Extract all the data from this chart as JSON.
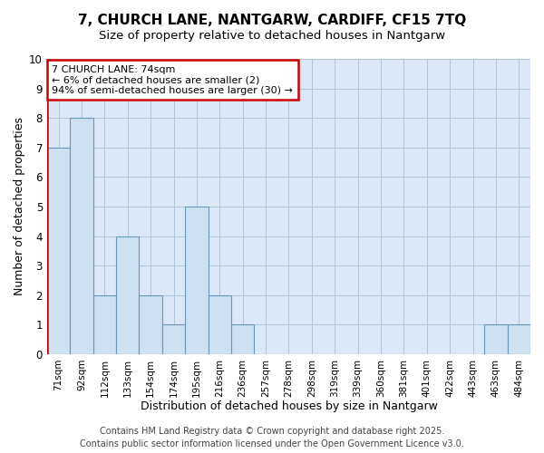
{
  "title_line1": "7, CHURCH LANE, NANTGARW, CARDIFF, CF15 7TQ",
  "title_line2": "Size of property relative to detached houses in Nantgarw",
  "xlabel": "Distribution of detached houses by size in Nantgarw",
  "ylabel": "Number of detached properties",
  "categories": [
    "71sqm",
    "92sqm",
    "112sqm",
    "133sqm",
    "154sqm",
    "174sqm",
    "195sqm",
    "216sqm",
    "236sqm",
    "257sqm",
    "278sqm",
    "298sqm",
    "319sqm",
    "339sqm",
    "360sqm",
    "381sqm",
    "401sqm",
    "422sqm",
    "443sqm",
    "463sqm",
    "484sqm"
  ],
  "values": [
    7,
    8,
    2,
    4,
    2,
    1,
    5,
    2,
    1,
    0,
    0,
    0,
    0,
    0,
    0,
    0,
    0,
    0,
    0,
    1,
    1
  ],
  "bar_color": "#cfe0f0",
  "bar_edge_color": "#6699bb",
  "ylim": [
    0,
    10
  ],
  "yticks": [
    0,
    1,
    2,
    3,
    4,
    5,
    6,
    7,
    8,
    9,
    10
  ],
  "annotation_text": "7 CHURCH LANE: 74sqm\n← 6% of detached houses are smaller (2)\n94% of semi-detached houses are larger (30) →",
  "annotation_box_color": "#ffffff",
  "annotation_border_color": "#cc0000",
  "vline_color": "#cc0000",
  "footer_line1": "Contains HM Land Registry data © Crown copyright and database right 2025.",
  "footer_line2": "Contains public sector information licensed under the Open Government Licence v3.0.",
  "plot_bg_color": "#dce8f8",
  "fig_bg_color": "#ffffff",
  "grid_color": "#b0c4d8",
  "title_fontsize": 11,
  "subtitle_fontsize": 9.5,
  "axis_label_fontsize": 9,
  "tick_fontsize": 7.5,
  "footer_fontsize": 7,
  "annotation_fontsize": 8
}
